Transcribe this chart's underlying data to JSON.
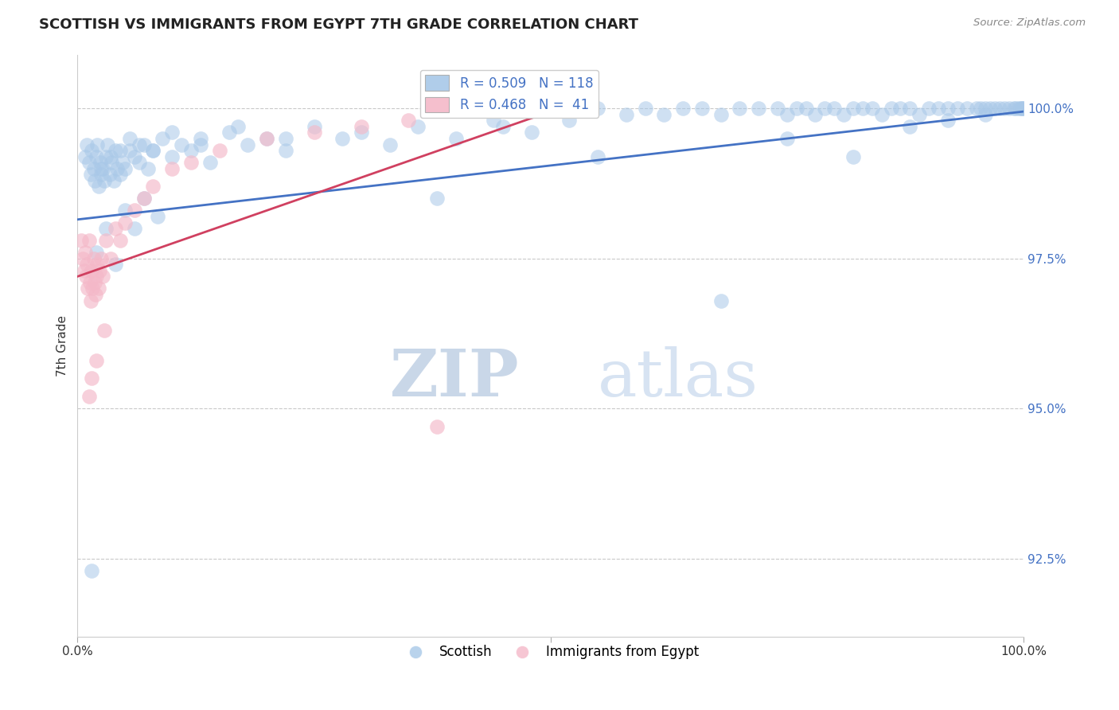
{
  "title": "SCOTTISH VS IMMIGRANTS FROM EGYPT 7TH GRADE CORRELATION CHART",
  "source": "Source: ZipAtlas.com",
  "ylabel": "7th Grade",
  "yticks": [
    92.5,
    95.0,
    97.5,
    100.0
  ],
  "ytick_labels": [
    "92.5%",
    "95.0%",
    "97.5%",
    "100.0%"
  ],
  "xlim": [
    0.0,
    100.0
  ],
  "ylim": [
    91.2,
    100.9
  ],
  "blue_R": 0.509,
  "blue_N": 118,
  "pink_R": 0.468,
  "pink_N": 41,
  "legend_scottish": "Scottish",
  "legend_egypt": "Immigrants from Egypt",
  "blue_color": "#a8c8e8",
  "pink_color": "#f4b8c8",
  "blue_line_color": "#4472c4",
  "pink_line_color": "#d04060",
  "watermark_zip": "ZIP",
  "watermark_atlas": "atlas",
  "watermark_color_zip": "#c5d8ee",
  "watermark_color_atlas": "#c5d8ee",
  "blue_regline": [
    [
      0,
      100
    ],
    [
      98.15,
      99.95
    ]
  ],
  "pink_regline": [
    [
      0,
      50
    ],
    [
      97.2,
      99.95
    ]
  ],
  "blue_scatter_x": [
    0.8,
    1.0,
    1.2,
    1.4,
    1.5,
    1.7,
    1.8,
    2.0,
    2.1,
    2.2,
    2.4,
    2.5,
    2.7,
    2.8,
    3.0,
    3.2,
    3.4,
    3.6,
    3.8,
    4.0,
    4.2,
    4.5,
    4.8,
    5.0,
    5.5,
    6.0,
    6.5,
    7.0,
    7.5,
    8.0,
    9.0,
    10.0,
    11.0,
    12.0,
    13.0,
    14.0,
    16.0,
    18.0,
    20.0,
    22.0,
    25.0,
    28.0,
    30.0,
    33.0,
    36.0,
    40.0,
    44.0,
    48.0,
    50.0,
    52.0,
    55.0,
    58.0,
    60.0,
    62.0,
    64.0,
    66.0,
    68.0,
    70.0,
    72.0,
    74.0,
    75.0,
    76.0,
    77.0,
    78.0,
    79.0,
    80.0,
    81.0,
    82.0,
    83.0,
    84.0,
    85.0,
    86.0,
    87.0,
    88.0,
    89.0,
    90.0,
    91.0,
    92.0,
    93.0,
    94.0,
    95.0,
    95.5,
    96.0,
    96.5,
    97.0,
    97.5,
    98.0,
    98.5,
    99.0,
    99.2,
    99.5,
    99.7,
    99.8,
    99.9,
    100.0,
    45.0,
    38.0,
    55.0,
    68.0,
    75.0,
    82.0,
    88.0,
    92.0,
    96.0,
    2.5,
    3.5,
    4.5,
    5.5,
    6.5,
    8.0,
    10.0,
    13.0,
    17.0,
    22.0,
    1.5,
    2.0,
    3.0,
    4.0,
    5.0,
    6.0,
    7.0,
    8.5
  ],
  "blue_scatter_y": [
    99.2,
    99.4,
    99.1,
    98.9,
    99.3,
    99.0,
    98.8,
    99.2,
    99.4,
    98.7,
    99.1,
    98.9,
    99.0,
    98.8,
    99.2,
    99.4,
    98.9,
    99.1,
    98.8,
    99.3,
    99.0,
    98.9,
    99.1,
    99.0,
    99.3,
    99.2,
    99.1,
    99.4,
    99.0,
    99.3,
    99.5,
    99.2,
    99.4,
    99.3,
    99.5,
    99.1,
    99.6,
    99.4,
    99.5,
    99.3,
    99.7,
    99.5,
    99.6,
    99.4,
    99.7,
    99.5,
    99.8,
    99.6,
    100.0,
    99.8,
    100.0,
    99.9,
    100.0,
    99.9,
    100.0,
    100.0,
    99.9,
    100.0,
    100.0,
    100.0,
    99.9,
    100.0,
    100.0,
    99.9,
    100.0,
    100.0,
    99.9,
    100.0,
    100.0,
    100.0,
    99.9,
    100.0,
    100.0,
    100.0,
    99.9,
    100.0,
    100.0,
    100.0,
    100.0,
    100.0,
    100.0,
    100.0,
    100.0,
    100.0,
    100.0,
    100.0,
    100.0,
    100.0,
    100.0,
    100.0,
    100.0,
    100.0,
    100.0,
    100.0,
    100.0,
    99.7,
    98.5,
    99.2,
    96.8,
    99.5,
    99.2,
    99.7,
    99.8,
    99.9,
    99.0,
    99.2,
    99.3,
    99.5,
    99.4,
    99.3,
    99.6,
    99.4,
    99.7,
    99.5,
    92.3,
    97.6,
    98.0,
    97.4,
    98.3,
    98.0,
    98.5,
    98.2
  ],
  "pink_scatter_x": [
    0.4,
    0.6,
    0.7,
    0.8,
    0.9,
    1.0,
    1.1,
    1.2,
    1.3,
    1.4,
    1.5,
    1.6,
    1.7,
    1.8,
    1.9,
    2.0,
    2.1,
    2.2,
    2.3,
    2.5,
    2.7,
    3.0,
    3.5,
    4.0,
    4.5,
    5.0,
    6.0,
    7.0,
    8.0,
    10.0,
    12.0,
    15.0,
    20.0,
    25.0,
    30.0,
    35.0,
    1.2,
    1.5,
    2.0,
    2.8,
    38.0
  ],
  "pink_scatter_y": [
    97.8,
    97.5,
    97.3,
    97.6,
    97.2,
    97.4,
    97.0,
    97.8,
    97.1,
    96.8,
    97.3,
    97.0,
    97.5,
    97.1,
    96.9,
    97.2,
    97.4,
    97.0,
    97.3,
    97.5,
    97.2,
    97.8,
    97.5,
    98.0,
    97.8,
    98.1,
    98.3,
    98.5,
    98.7,
    99.0,
    99.1,
    99.3,
    99.5,
    99.6,
    99.7,
    99.8,
    95.2,
    95.5,
    95.8,
    96.3,
    94.7
  ]
}
